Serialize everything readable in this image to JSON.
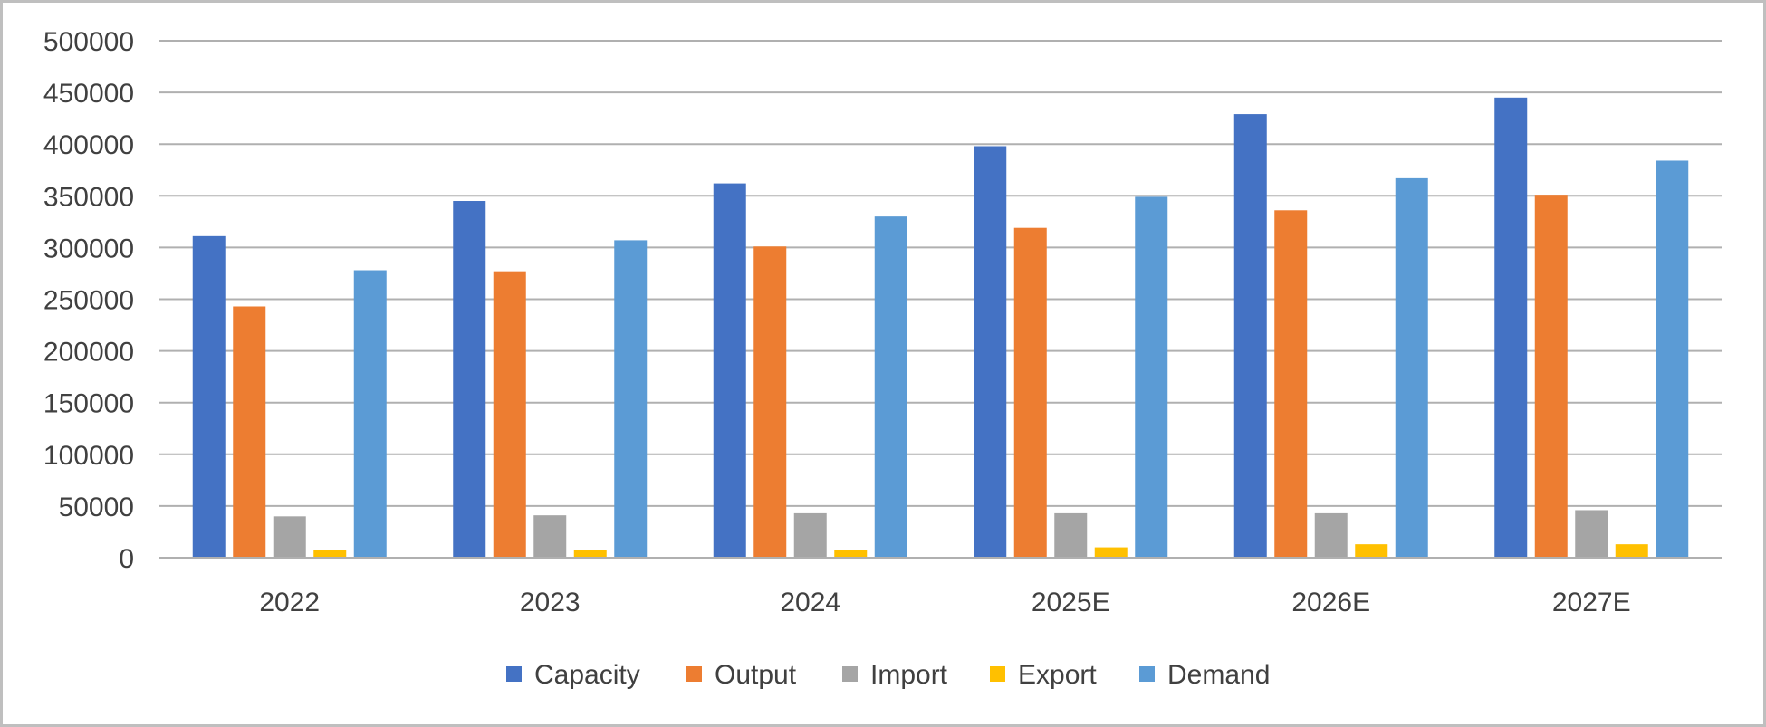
{
  "chart_data": {
    "type": "bar",
    "title": "",
    "xlabel": "",
    "ylabel": "",
    "categories": [
      "2022",
      "2023",
      "2024",
      "2025E",
      "2026E",
      "2027E"
    ],
    "ylim": [
      0,
      500000
    ],
    "y_ticks": [
      0,
      50000,
      100000,
      150000,
      200000,
      250000,
      300000,
      350000,
      400000,
      450000,
      500000
    ],
    "y_tick_labels": [
      "0",
      "50000",
      "100000",
      "150000",
      "200000",
      "250000",
      "300000",
      "350000",
      "400000",
      "450000",
      "500000"
    ],
    "grid": true,
    "legend_position": "bottom",
    "series": [
      {
        "name": "Capacity",
        "color": "#4472C4",
        "values": [
          311000,
          345000,
          362000,
          398000,
          429000,
          445000
        ]
      },
      {
        "name": "Output",
        "color": "#ED7D31",
        "values": [
          243000,
          277000,
          301000,
          319000,
          336000,
          351000
        ]
      },
      {
        "name": "Import",
        "color": "#A5A5A5",
        "values": [
          40000,
          41000,
          43000,
          43000,
          43000,
          46000
        ]
      },
      {
        "name": "Export",
        "color": "#FFC000",
        "values": [
          7000,
          7000,
          7000,
          10000,
          13000,
          13000
        ]
      },
      {
        "name": "Demand",
        "color": "#5B9BD5",
        "values": [
          278000,
          307000,
          330000,
          349000,
          367000,
          384000
        ]
      }
    ]
  }
}
